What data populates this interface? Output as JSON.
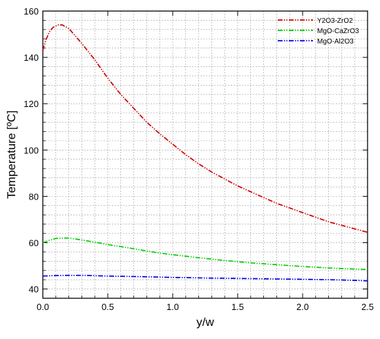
{
  "chart_data": {
    "type": "line",
    "title": "",
    "xlabel": "y/w",
    "ylabel": "Temperature [ºC]",
    "xlim": [
      0,
      2.5
    ],
    "ylim": [
      36,
      160
    ],
    "xticks": [
      0.0,
      0.5,
      1.0,
      1.5,
      2.0,
      2.5
    ],
    "xtick_labels": [
      "0.0",
      "0.5",
      "1.0",
      "1.5",
      "2.0",
      "2.5"
    ],
    "yticks": [
      40,
      60,
      80,
      100,
      120,
      140,
      160
    ],
    "ytick_labels": [
      "40",
      "60",
      "80",
      "100",
      "120",
      "140",
      "160"
    ],
    "grid": true,
    "legend_position": "top-right",
    "series": [
      {
        "name": "Y2O3-ZrO2",
        "color": "#cc0000",
        "x": [
          0.0,
          0.02,
          0.05,
          0.08,
          0.12,
          0.15,
          0.2,
          0.3,
          0.4,
          0.5,
          0.6,
          0.7,
          0.8,
          0.9,
          1.0,
          1.1,
          1.2,
          1.3,
          1.4,
          1.5,
          1.6,
          1.7,
          1.8,
          1.9,
          2.0,
          2.1,
          2.2,
          2.3,
          2.4,
          2.5
        ],
        "y": [
          143,
          147,
          151,
          153,
          154,
          154,
          152.5,
          146,
          139,
          131,
          124,
          118,
          112,
          107,
          102.5,
          98,
          94,
          90.5,
          87.5,
          84.5,
          82,
          79.5,
          77,
          75,
          73,
          71,
          69,
          67.5,
          66,
          64.5
        ]
      },
      {
        "name": "MgO-CaZrO3",
        "color": "#00cc00",
        "x": [
          0.0,
          0.05,
          0.1,
          0.15,
          0.2,
          0.3,
          0.4,
          0.5,
          0.6,
          0.7,
          0.8,
          0.9,
          1.0,
          1.2,
          1.4,
          1.6,
          1.8,
          2.0,
          2.2,
          2.4,
          2.5
        ],
        "y": [
          60,
          61,
          61.8,
          62,
          62,
          61.2,
          60.2,
          59.2,
          58.3,
          57.4,
          56.4,
          55.5,
          54.8,
          53.5,
          52.3,
          51.3,
          50.5,
          49.7,
          49.1,
          48.6,
          48.4
        ]
      },
      {
        "name": "MgO-Al2O3",
        "color": "#0000ee",
        "x": [
          0.0,
          0.1,
          0.2,
          0.3,
          0.5,
          0.7,
          1.0,
          1.3,
          1.6,
          2.0,
          2.3,
          2.5
        ],
        "y": [
          45.6,
          45.8,
          45.9,
          45.9,
          45.6,
          45.4,
          45.0,
          44.7,
          44.5,
          44.2,
          43.9,
          43.5
        ]
      }
    ]
  }
}
